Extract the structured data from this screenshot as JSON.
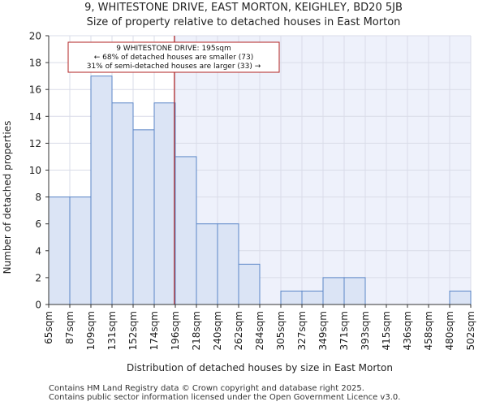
{
  "page": {
    "title_line1": "9, WHITESTONE DRIVE, EAST MORTON, KEIGHLEY, BD20 5JB",
    "title_line2": "Size of property relative to detached houses in East Morton",
    "footer_line1": "Contains HM Land Registry data © Crown copyright and database right 2025.",
    "footer_line2": "Contains public sector information licensed under the Open Government Licence v3.0."
  },
  "chart_data": {
    "type": "bar",
    "xlabel": "Distribution of detached houses by size in East Morton",
    "ylabel": "Number of detached properties",
    "ylim": [
      0,
      20
    ],
    "yticks": [
      0,
      2,
      4,
      6,
      8,
      10,
      12,
      14,
      16,
      18,
      20
    ],
    "x_tick_labels": [
      "65sqm",
      "87sqm",
      "109sqm",
      "131sqm",
      "152sqm",
      "174sqm",
      "196sqm",
      "218sqm",
      "240sqm",
      "262sqm",
      "284sqm",
      "305sqm",
      "327sqm",
      "349sqm",
      "371sqm",
      "393sqm",
      "415sqm",
      "436sqm",
      "458sqm",
      "480sqm",
      "502sqm"
    ],
    "values": [
      8,
      8,
      17,
      15,
      13,
      15,
      11,
      6,
      6,
      3,
      0,
      1,
      1,
      2,
      2,
      0,
      0,
      0,
      0,
      1
    ],
    "marker_value": 195,
    "annotation": {
      "line1": "9 WHITESTONE DRIVE: 195sqm",
      "line2": "← 68% of detached houses are smaller (73)",
      "line3": "31% of semi-detached houses are larger (33) →"
    },
    "grid": true,
    "colors": {
      "bar_fill": "#dbe4f5",
      "bar_stroke": "#5b86c7",
      "shade_right": "#eef1fb",
      "marker": "#b22222",
      "grid": "#d9dce8",
      "annotation_border": "#b22222"
    }
  }
}
